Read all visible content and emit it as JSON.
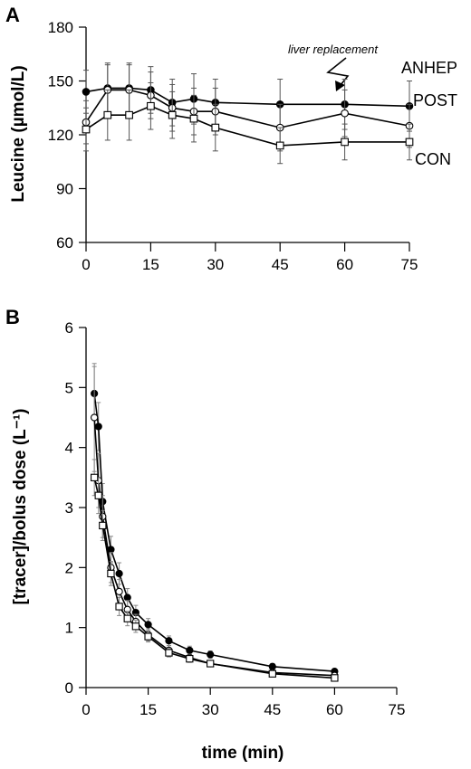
{
  "chart_data": [
    {
      "type": "line",
      "panel_label": "A",
      "ylabel": "Leucine (µmol/L)",
      "xlabel": "",
      "xlim": [
        0,
        75
      ],
      "ylim": [
        60,
        180
      ],
      "xticks": [
        0,
        15,
        30,
        45,
        60,
        75
      ],
      "yticks": [
        60,
        90,
        120,
        150,
        180
      ],
      "annotation": "liver replacement",
      "series": [
        {
          "name": "ANHEP",
          "marker": "filled-circle",
          "x": [
            0,
            5,
            10,
            15,
            20,
            25,
            30,
            45,
            60,
            75
          ],
          "y": [
            144,
            146,
            146,
            145,
            138,
            140,
            138,
            137,
            137,
            136
          ],
          "err": [
            12,
            14,
            14,
            13,
            13,
            14,
            13,
            14,
            14,
            14
          ]
        },
        {
          "name": "POST",
          "marker": "open-circle",
          "x": [
            0,
            5,
            10,
            15,
            20,
            25,
            30,
            45,
            60,
            75
          ],
          "y": [
            127,
            145,
            145,
            142,
            135,
            133,
            133,
            124,
            132,
            125
          ],
          "err": [
            12,
            14,
            14,
            13,
            13,
            13,
            13,
            13,
            13,
            12
          ]
        },
        {
          "name": "CON",
          "marker": "open-square",
          "x": [
            0,
            5,
            10,
            15,
            20,
            25,
            30,
            45,
            60,
            75
          ],
          "y": [
            123,
            131,
            131,
            136,
            131,
            129,
            124,
            114,
            116,
            116
          ],
          "err": [
            12,
            14,
            14,
            13,
            13,
            13,
            13,
            10,
            10,
            10
          ]
        }
      ]
    },
    {
      "type": "line",
      "panel_label": "B",
      "ylabel": "[tracer]/bolus dose (L⁻¹)",
      "xlabel": "time (min)",
      "xlim": [
        0,
        75
      ],
      "ylim": [
        0,
        6
      ],
      "xticks": [
        0,
        15,
        30,
        45,
        60,
        75
      ],
      "yticks": [
        0,
        1,
        2,
        3,
        4,
        5,
        6
      ],
      "series": [
        {
          "marker": "filled-circle",
          "x": [
            2,
            3,
            4,
            6,
            8,
            10,
            12,
            15,
            20,
            25,
            30,
            45,
            60
          ],
          "y": [
            4.9,
            4.35,
            3.1,
            2.3,
            1.9,
            1.5,
            1.25,
            1.05,
            0.78,
            0.62,
            0.55,
            0.35,
            0.27
          ],
          "err": [
            0.45,
            0.4,
            0.3,
            0.22,
            0.18,
            0.15,
            0.12,
            0.1,
            0.08,
            0.07,
            0.06,
            0.05,
            0.04
          ]
        },
        {
          "marker": "open-circle",
          "x": [
            2,
            3,
            4,
            6,
            8,
            10,
            12,
            15,
            20,
            25,
            30,
            45,
            60
          ],
          "y": [
            4.5,
            3.45,
            2.85,
            2.0,
            1.6,
            1.3,
            1.1,
            0.88,
            0.62,
            0.5,
            0.4,
            0.25,
            0.2
          ],
          "err": [
            0.9,
            0.45,
            0.35,
            0.25,
            0.2,
            0.15,
            0.12,
            0.1,
            0.08,
            0.06,
            0.05,
            0.04,
            0.04
          ]
        },
        {
          "marker": "open-square",
          "x": [
            2,
            3,
            4,
            6,
            8,
            10,
            12,
            15,
            20,
            25,
            30,
            45,
            60
          ],
          "y": [
            3.5,
            3.2,
            2.7,
            1.9,
            1.35,
            1.15,
            1.02,
            0.85,
            0.58,
            0.48,
            0.4,
            0.23,
            0.16
          ],
          "err": [
            0.3,
            0.3,
            0.25,
            0.2,
            0.15,
            0.12,
            0.1,
            0.09,
            0.07,
            0.06,
            0.05,
            0.04,
            0.03
          ]
        }
      ]
    }
  ]
}
